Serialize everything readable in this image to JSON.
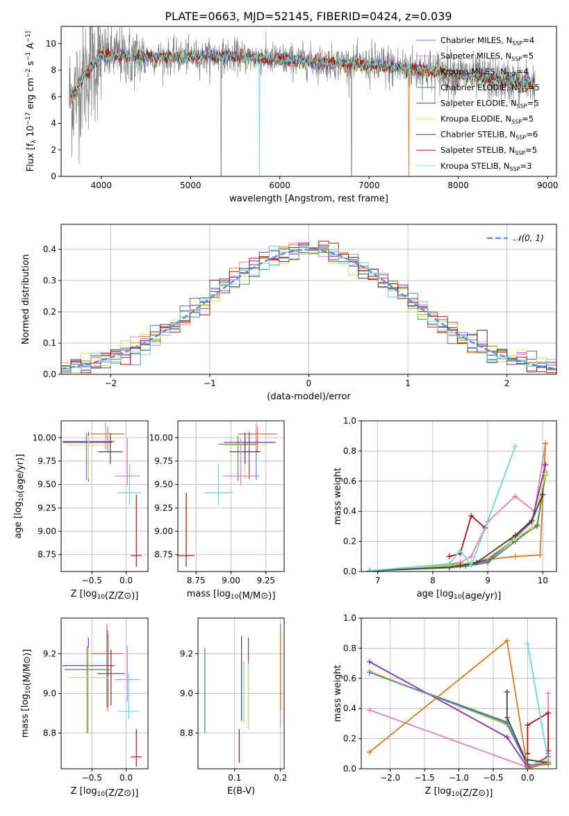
{
  "figure_title": "PLATE=0663, MJD=52145, FIBERID=0424, z=0.039",
  "models": [
    {
      "name": "Chabrier MILES",
      "nssp": "4",
      "color": "#5b7fd1"
    },
    {
      "name": "Salpeter MILES",
      "nssp": "5",
      "color": "#e37fbf"
    },
    {
      "name": "Kroupa MILES",
      "nssp": "4",
      "color": "#d97a1f"
    },
    {
      "name": "Chabrier ELODIE",
      "nssp": "5",
      "color": "#4c8a56"
    },
    {
      "name": "Salpeter ELODIE",
      "nssp": "5",
      "color": "#8e2bb0"
    },
    {
      "name": "Kroupa ELODIE",
      "nssp": "5",
      "color": "#d6e05a"
    },
    {
      "name": "Chabrier STELIB",
      "nssp": "6",
      "color": "#404040"
    },
    {
      "name": "Salpeter STELIB",
      "nssp": "5",
      "color": "#b01010"
    },
    {
      "name": "Kroupa STELIB",
      "nssp": "3",
      "color": "#6fd6d6"
    }
  ],
  "chart_data": [
    {
      "id": "spectrum",
      "type": "line",
      "xlabel": "wavelength [Angstrom, rest frame]",
      "ylabel": "Flux [f_λ 10^-17 erg cm^-2 s^-1 A^-1]",
      "xlim": [
        3550,
        9100
      ],
      "ylim": [
        0,
        11.3
      ],
      "xticks": [
        4000,
        5000,
        6000,
        7000,
        8000,
        9000
      ],
      "yticks": [
        0,
        2,
        4,
        6,
        8,
        10
      ],
      "grid": false,
      "legend": "upper-right",
      "data_color": "#808080",
      "model_anchor_wavelength": [
        3650,
        3700,
        3800,
        3900,
        4000,
        4200,
        4500,
        5000,
        5500,
        6000,
        6500,
        7000,
        7500,
        8000,
        8500,
        8850
      ],
      "model_anchor_flux": [
        6.0,
        6.2,
        7.5,
        8.4,
        9.2,
        9.1,
        9.0,
        9.0,
        9.05,
        8.8,
        8.6,
        8.4,
        8.1,
        7.7,
        7.2,
        7.0
      ]
    },
    {
      "id": "residuals",
      "type": "histogram",
      "xlabel": "(data-model)/error",
      "ylabel": "Normed distribution",
      "xlim": [
        -2.5,
        2.5
      ],
      "ylim": [
        0,
        0.48
      ],
      "xticks": [
        -2,
        -1,
        0,
        1,
        2
      ],
      "yticks": [
        0.0,
        0.1,
        0.2,
        0.3,
        0.4
      ],
      "grid": true,
      "legend": "upper-right",
      "reference_label": "𝒩(0, 1)",
      "reference_color": "#5b8fd6",
      "bin_width": 0.1
    },
    {
      "id": "age-vs-Z",
      "type": "errorbar",
      "xlabel": "Z [log10(Z/Z⊙)]",
      "ylabel": "age  [log10(age/yr)]",
      "xlim": [
        -0.95,
        0.32
      ],
      "ylim": [
        8.57,
        10.18
      ],
      "xticks": [
        -0.5,
        0.0
      ],
      "yticks": [
        8.75,
        9.0,
        9.25,
        9.5,
        9.75,
        10.0
      ],
      "grid": true,
      "points": [
        {
          "x": -0.58,
          "y": 9.95,
          "xerr": 0.35,
          "ylo": 9.55,
          "yhi": 10.05,
          "color": 0
        },
        {
          "x": -0.3,
          "y": 10.04,
          "xerr": 0.22,
          "ylo": 9.88,
          "yhi": 10.16,
          "color": 1
        },
        {
          "x": -0.27,
          "y": 10.04,
          "xerr": 0.25,
          "ylo": 9.85,
          "yhi": 10.12,
          "color": 2
        },
        {
          "x": -0.55,
          "y": 9.96,
          "xerr": 0.38,
          "ylo": 9.53,
          "yhi": 10.05,
          "color": 3
        },
        {
          "x": -0.55,
          "y": 9.95,
          "xerr": 0.35,
          "ylo": 9.56,
          "yhi": 10.06,
          "color": 4
        },
        {
          "x": -0.55,
          "y": 9.92,
          "xerr": 0.32,
          "ylo": 9.56,
          "yhi": 10.02,
          "color": 5
        },
        {
          "x": -0.23,
          "y": 9.85,
          "xerr": 0.18,
          "ylo": 9.72,
          "yhi": 10.05,
          "color": 6
        },
        {
          "x": 0.15,
          "y": 8.74,
          "xerr": 0.08,
          "ylo": 8.62,
          "yhi": 9.39,
          "color": 7
        },
        {
          "x": 0.05,
          "y": 9.41,
          "xerr": 0.17,
          "ylo": 9.28,
          "yhi": 9.72,
          "color": 8
        },
        {
          "x": 0.02,
          "y": 9.59,
          "xerr": 0.18,
          "ylo": 9.49,
          "yhi": 9.99,
          "color": 1
        }
      ]
    },
    {
      "id": "age-vs-mass",
      "type": "errorbar",
      "xlabel": "mass [log10(M/M⊙)]",
      "ylabel": "",
      "xlim": [
        8.62,
        9.38
      ],
      "ylim": [
        8.57,
        10.18
      ],
      "xticks": [
        8.75,
        9.0,
        9.25
      ],
      "yticks": [
        8.75,
        9.0,
        9.25,
        9.5,
        9.75,
        10.0
      ],
      "grid": true,
      "points": [
        {
          "x": 9.18,
          "y": 9.95,
          "xerr": 0.14,
          "ylo": 9.55,
          "yhi": 10.08,
          "color": 0
        },
        {
          "x": 9.18,
          "y": 10.04,
          "xerr": 0.12,
          "ylo": 9.88,
          "yhi": 10.16,
          "color": 1
        },
        {
          "x": 9.19,
          "y": 10.04,
          "xerr": 0.14,
          "ylo": 9.85,
          "yhi": 10.12,
          "color": 2
        },
        {
          "x": 9.05,
          "y": 9.93,
          "xerr": 0.14,
          "ylo": 9.54,
          "yhi": 10.02,
          "color": 3
        },
        {
          "x": 9.13,
          "y": 9.95,
          "xerr": 0.18,
          "ylo": 9.56,
          "yhi": 10.06,
          "color": 4
        },
        {
          "x": 9.1,
          "y": 9.92,
          "xerr": 0.15,
          "ylo": 9.56,
          "yhi": 10.0,
          "color": 5
        },
        {
          "x": 9.1,
          "y": 9.85,
          "xerr": 0.11,
          "ylo": 9.72,
          "yhi": 10.05,
          "color": 6
        },
        {
          "x": 8.68,
          "y": 8.74,
          "xerr": 0.06,
          "ylo": 8.62,
          "yhi": 9.41,
          "color": 7
        },
        {
          "x": 8.91,
          "y": 9.41,
          "xerr": 0.1,
          "ylo": 9.28,
          "yhi": 9.72,
          "color": 8
        },
        {
          "x": 9.07,
          "y": 9.59,
          "xerr": 0.13,
          "ylo": 9.49,
          "yhi": 9.99,
          "color": 1
        }
      ]
    },
    {
      "id": "mass-weight-vs-age",
      "type": "line",
      "xlabel": "age  [log10(age/yr)]",
      "ylabel": "mass weight",
      "xlim": [
        6.7,
        10.25
      ],
      "ylim": [
        0,
        1
      ],
      "xticks": [
        7,
        8,
        9,
        10
      ],
      "yticks": [
        0.0,
        0.2,
        0.4,
        0.6,
        0.8,
        1.0
      ],
      "grid": true,
      "marker": "+",
      "series": [
        {
          "color": 0,
          "x": [
            6.85,
            8.3,
            8.6,
            9.0,
            9.5,
            9.9,
            10.05
          ],
          "y": [
            0.005,
            0.03,
            0.04,
            0.07,
            0.22,
            0.3,
            0.66
          ]
        },
        {
          "color": 1,
          "x": [
            6.85,
            8.3,
            8.5,
            8.7,
            9.0,
            9.5,
            9.85,
            10.05
          ],
          "y": [
            0.005,
            0.05,
            0.06,
            0.1,
            0.33,
            0.5,
            0.4,
            0.85
          ]
        },
        {
          "color": 2,
          "x": [
            6.85,
            8.5,
            8.7,
            9.0,
            9.5,
            9.95,
            10.05
          ],
          "y": [
            0.003,
            0.05,
            0.06,
            0.08,
            0.1,
            0.11,
            0.85
          ]
        },
        {
          "color": 3,
          "x": [
            6.85,
            8.3,
            8.6,
            9.0,
            9.5,
            9.9,
            10.05
          ],
          "y": [
            0.005,
            0.025,
            0.035,
            0.06,
            0.2,
            0.31,
            0.64
          ]
        },
        {
          "color": 4,
          "x": [
            6.85,
            8.4,
            8.7,
            9.0,
            9.45,
            9.8,
            10.05
          ],
          "y": [
            0.005,
            0.04,
            0.05,
            0.08,
            0.21,
            0.33,
            0.71
          ]
        },
        {
          "color": 5,
          "x": [
            6.85,
            8.4,
            8.7,
            9.0,
            9.5,
            9.8,
            10.05
          ],
          "y": [
            0.005,
            0.04,
            0.06,
            0.09,
            0.22,
            0.29,
            0.65
          ]
        },
        {
          "color": 6,
          "x": [
            6.85,
            8.3,
            8.5,
            8.8,
            9.5,
            9.8,
            10.0
          ],
          "y": [
            0.003,
            0.03,
            0.04,
            0.06,
            0.24,
            0.34,
            0.51
          ]
        },
        {
          "color": 7,
          "x": [
            8.3,
            8.5,
            8.7,
            8.95
          ],
          "y": [
            0.1,
            0.12,
            0.37,
            0.29
          ]
        },
        {
          "color": 8,
          "x": [
            6.85,
            8.3,
            8.5,
            8.7,
            9.5
          ],
          "y": [
            0.005,
            0.05,
            0.14,
            0.04,
            0.83
          ]
        }
      ]
    },
    {
      "id": "mass-vs-Z",
      "type": "errorbar",
      "xlabel": "Z [log10(Z/Z⊙)]",
      "ylabel": "mass [log10(M/M⊙)]",
      "xlim": [
        -0.95,
        0.32
      ],
      "ylim": [
        8.62,
        9.38
      ],
      "xticks": [
        -0.5,
        0.0
      ],
      "yticks": [
        8.8,
        9.0,
        9.2
      ],
      "grid": true,
      "points": [
        {
          "x": -0.28,
          "y": 9.2,
          "xerr": 0.22,
          "ylo": 8.93,
          "yhi": 9.35,
          "color": 0
        },
        {
          "x": -0.26,
          "y": 9.2,
          "xerr": 0.2,
          "ylo": 8.93,
          "yhi": 9.3,
          "color": 1
        },
        {
          "x": -0.27,
          "y": 9.2,
          "xerr": 0.23,
          "ylo": 8.91,
          "yhi": 9.32,
          "color": 2
        },
        {
          "x": -0.57,
          "y": 9.12,
          "xerr": 0.33,
          "ylo": 8.8,
          "yhi": 9.24,
          "color": 3
        },
        {
          "x": -0.55,
          "y": 9.14,
          "xerr": 0.38,
          "ylo": 8.8,
          "yhi": 9.28,
          "color": 4
        },
        {
          "x": -0.55,
          "y": 9.08,
          "xerr": 0.3,
          "ylo": 8.8,
          "yhi": 9.23,
          "color": 5
        },
        {
          "x": -0.22,
          "y": 9.1,
          "xerr": 0.2,
          "ylo": 8.94,
          "yhi": 9.22,
          "color": 6
        },
        {
          "x": 0.15,
          "y": 8.68,
          "xerr": 0.08,
          "ylo": 8.63,
          "yhi": 8.82,
          "color": 7
        },
        {
          "x": 0.04,
          "y": 8.91,
          "xerr": 0.16,
          "ylo": 8.87,
          "yhi": 9.1,
          "color": 8
        },
        {
          "x": 0.02,
          "y": 9.07,
          "xerr": 0.18,
          "ylo": 8.96,
          "yhi": 9.24,
          "color": 1
        }
      ]
    },
    {
      "id": "mass-vs-EBV",
      "type": "errorbar",
      "xlabel": "E(B-V)",
      "ylabel": "",
      "xlim": [
        0.02,
        0.208
      ],
      "ylim": [
        8.62,
        9.38
      ],
      "xticks": [
        0.1,
        0.2
      ],
      "yticks": [
        8.8,
        9.0,
        9.2
      ],
      "grid": true,
      "points": [
        {
          "x": 0.2,
          "y": 9.2,
          "xerr": 0.0,
          "ylo": 8.93,
          "yhi": 9.35,
          "color": 0
        },
        {
          "x": 0.2,
          "y": 9.2,
          "xerr": 0.0,
          "ylo": 8.83,
          "yhi": 9.3,
          "color": 1
        },
        {
          "x": 0.2,
          "y": 9.2,
          "xerr": 0.0,
          "ylo": 8.91,
          "yhi": 9.32,
          "color": 2
        },
        {
          "x": 0.035,
          "y": 9.0,
          "xerr": 0.0,
          "ylo": 8.8,
          "yhi": 9.23,
          "color": 3
        },
        {
          "x": 0.13,
          "y": 9.1,
          "xerr": 0.0,
          "ylo": 8.82,
          "yhi": 9.28,
          "color": 4
        },
        {
          "x": 0.13,
          "y": 9.05,
          "xerr": 0.0,
          "ylo": 8.82,
          "yhi": 9.15,
          "color": 5
        },
        {
          "x": 0.115,
          "y": 9.1,
          "xerr": 0.0,
          "ylo": 8.86,
          "yhi": 9.29,
          "color": 6
        },
        {
          "x": 0.11,
          "y": 8.75,
          "xerr": 0.0,
          "ylo": 8.65,
          "yhi": 8.82,
          "color": 7
        },
        {
          "x": 0.12,
          "y": 9.0,
          "xerr": 0.0,
          "ylo": 8.85,
          "yhi": 9.16,
          "color": 8
        }
      ]
    },
    {
      "id": "mass-weight-vs-Z",
      "type": "line",
      "xlabel": "Z [log10(Z/Z⊙)]",
      "ylabel": "mass weight",
      "xlim": [
        -2.42,
        0.42
      ],
      "ylim": [
        0,
        1
      ],
      "xticks": [
        -2.0,
        -1.5,
        -1.0,
        -0.5,
        0.0
      ],
      "yticks": [
        0.0,
        0.2,
        0.4,
        0.6,
        0.8,
        1.0
      ],
      "grid": true,
      "marker": "+",
      "series": [
        {
          "color": 3,
          "x": [
            -2.3,
            -0.3,
            0.0,
            0.3
          ],
          "y": [
            0.64,
            0.31,
            0.02,
            0.03
          ]
        },
        {
          "color": 1,
          "x": [
            -2.3,
            0.0,
            0.3,
            0.3,
            0.3
          ],
          "y": [
            0.39,
            0.01,
            0.05,
            0.1,
            0.5
          ]
        },
        {
          "color": 4,
          "x": [
            -2.3,
            -0.3,
            0.0,
            0.3
          ],
          "y": [
            0.71,
            0.21,
            0.01,
            0.08
          ]
        },
        {
          "color": 5,
          "x": [
            -2.3,
            -0.3,
            0.0,
            0.3
          ],
          "y": [
            0.65,
            0.29,
            0.02,
            0.06
          ]
        },
        {
          "color": 0,
          "x": [
            -2.3,
            -0.3,
            0.0,
            0.3
          ],
          "y": [
            0.64,
            0.3,
            0.02,
            0.04
          ]
        },
        {
          "color": 6,
          "x": [
            -0.3,
            -0.3,
            0.0,
            0.0,
            0.3
          ],
          "y": [
            0.51,
            0.34,
            0.03,
            0.06,
            0.04
          ]
        },
        {
          "color": 7,
          "x": [
            0.0,
            0.0,
            0.3,
            0.3
          ],
          "y": [
            0.1,
            0.29,
            0.37,
            0.12
          ]
        },
        {
          "color": 8,
          "x": [
            0.0,
            0.3
          ],
          "y": [
            0.83,
            0.05
          ]
        },
        {
          "color": 2,
          "x": [
            -2.3,
            -0.3,
            0.0,
            0.3
          ],
          "y": [
            0.11,
            0.85,
            0.0,
            0.04
          ]
        }
      ]
    }
  ]
}
